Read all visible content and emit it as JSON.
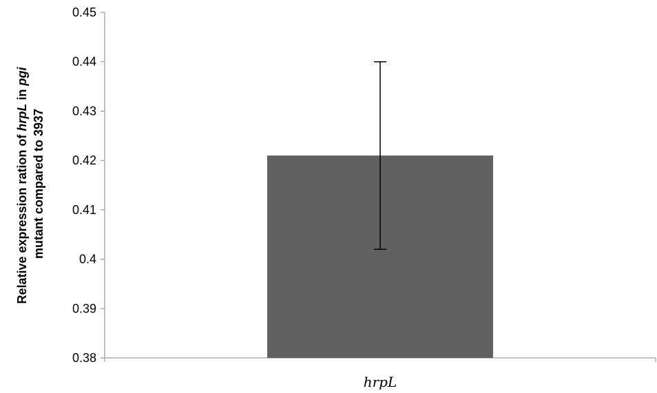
{
  "chart_data": {
    "type": "bar",
    "categories": [
      "hrpL"
    ],
    "values": [
      0.421
    ],
    "error_bars": {
      "lower": [
        0.402
      ],
      "upper": [
        0.44
      ]
    },
    "ylim": [
      0.38,
      0.45
    ],
    "yticks": [
      "0.38",
      "0.39",
      "0.4",
      "0.41",
      "0.42",
      "0.43",
      "0.44",
      "0.45"
    ],
    "ytick_values": [
      0.38,
      0.39,
      0.4,
      0.41,
      0.42,
      0.43,
      0.44,
      0.45
    ],
    "ylabel_line1_parts": [
      {
        "text": "Relative expression ration of ",
        "italic": false
      },
      {
        "text": "hrpL",
        "italic": true
      },
      {
        "text": " in ",
        "italic": false
      },
      {
        "text": "pgi",
        "italic": true
      }
    ],
    "ylabel_line2": "mutant compared to 3937",
    "xlabel": "",
    "title": "",
    "grid": false,
    "legend": "none",
    "bar_color": "#616161",
    "axis_color": "#868686",
    "error_bar_color": "#000000"
  }
}
